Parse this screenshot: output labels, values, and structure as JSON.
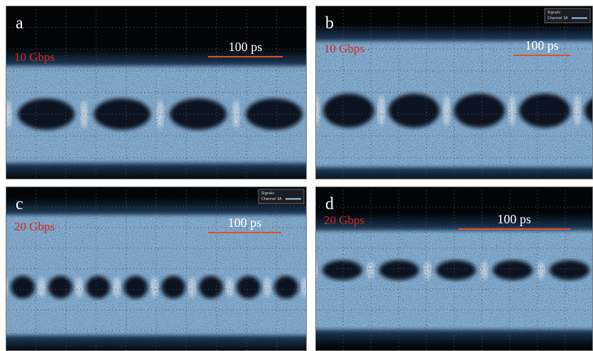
{
  "panels": [
    {
      "label": "a",
      "rate": "10 Gbps",
      "scale": "100 ps"
    },
    {
      "label": "b",
      "rate": "10 Gbps",
      "scale": "100 ps",
      "legend": {
        "title": "Signals",
        "entry": "Channel 3A"
      }
    },
    {
      "label": "c",
      "rate": "20 Gbps",
      "scale": "100 ps",
      "legend": {
        "title": "Signals",
        "entry": "Channel 3A"
      }
    },
    {
      "label": "d",
      "rate": "20 Gbps",
      "scale": "100 ps"
    }
  ]
}
